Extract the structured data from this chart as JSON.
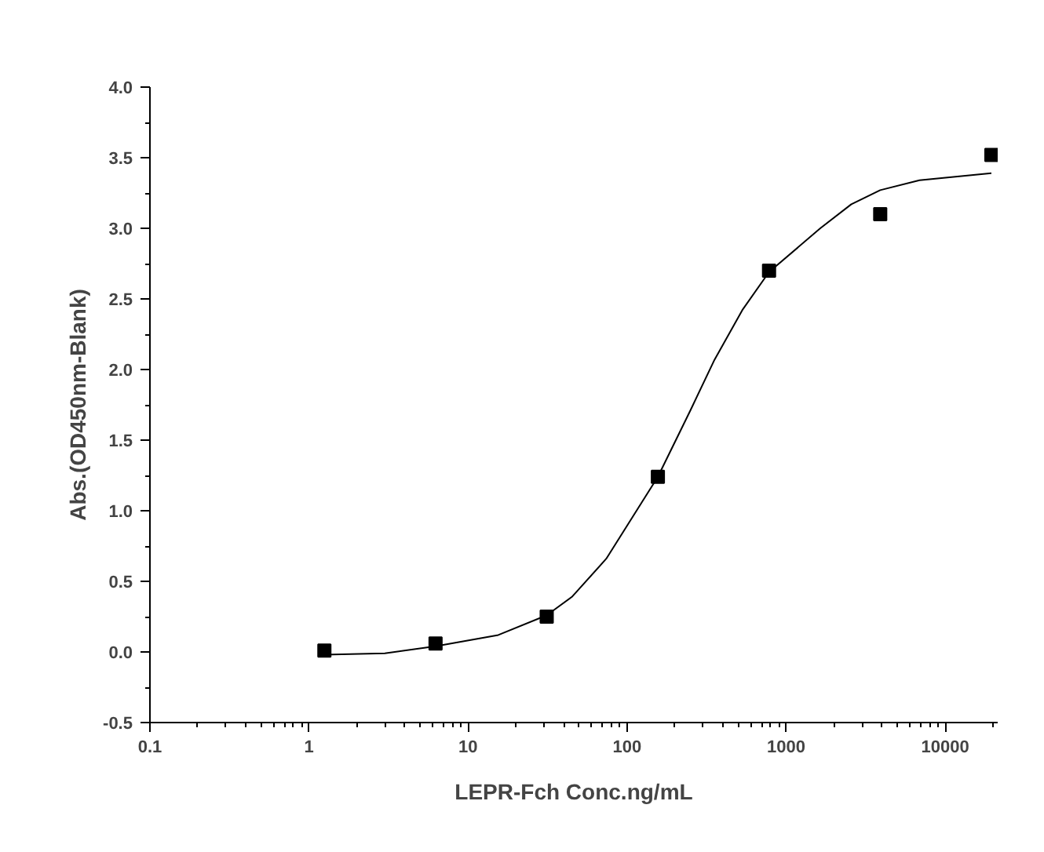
{
  "chart_data": {
    "type": "scatter",
    "xlabel": "LEPR-Fch Conc.ng/mL",
    "ylabel": "Abs.(OD450nm-Blank)",
    "log": "x",
    "xlim": [
      0.1,
      21400
    ],
    "ylim": [
      -0.5,
      4.0
    ],
    "xticks": [
      0.1,
      1,
      10,
      100,
      1000,
      10000
    ],
    "yticks": [
      {
        "value": -0.5,
        "label": "-0.5"
      },
      {
        "value": 0,
        "label": "0.0"
      },
      {
        "value": 0.5,
        "label": "0.5"
      },
      {
        "value": 1,
        "label": "1.0"
      },
      {
        "value": 1.5,
        "label": "1.5"
      },
      {
        "value": 2,
        "label": "2.0"
      },
      {
        "value": 2.5,
        "label": "2.5"
      },
      {
        "value": 3,
        "label": "3.0"
      },
      {
        "value": 3.5,
        "label": "3.5"
      },
      {
        "value": 4,
        "label": "4.0"
      }
    ],
    "marker": "square",
    "series": [
      {
        "color": "#000000",
        "x": [
          1.25,
          6.25,
          31.25,
          156.25,
          781.25,
          3906.25,
          19531.25
        ],
        "values": [
          0.01,
          0.06,
          0.25,
          1.24,
          2.7,
          3.1,
          3.52
        ]
      },
      {
        "type": "line",
        "color": "#000000",
        "line_style": "solid",
        "marker": "none",
        "x": [
          1.25,
          3.0,
          6.25,
          15.5,
          31.25,
          45,
          74,
          156.25,
          250,
          355,
          530,
          781.25,
          1640,
          2570,
          3906.25,
          6900,
          19531.25
        ],
        "values": [
          -0.02,
          -0.01,
          0.04,
          0.12,
          0.26,
          0.39,
          0.66,
          1.24,
          1.71,
          2.07,
          2.42,
          2.69,
          3.0,
          3.17,
          3.27,
          3.34,
          3.39
        ]
      }
    ]
  }
}
